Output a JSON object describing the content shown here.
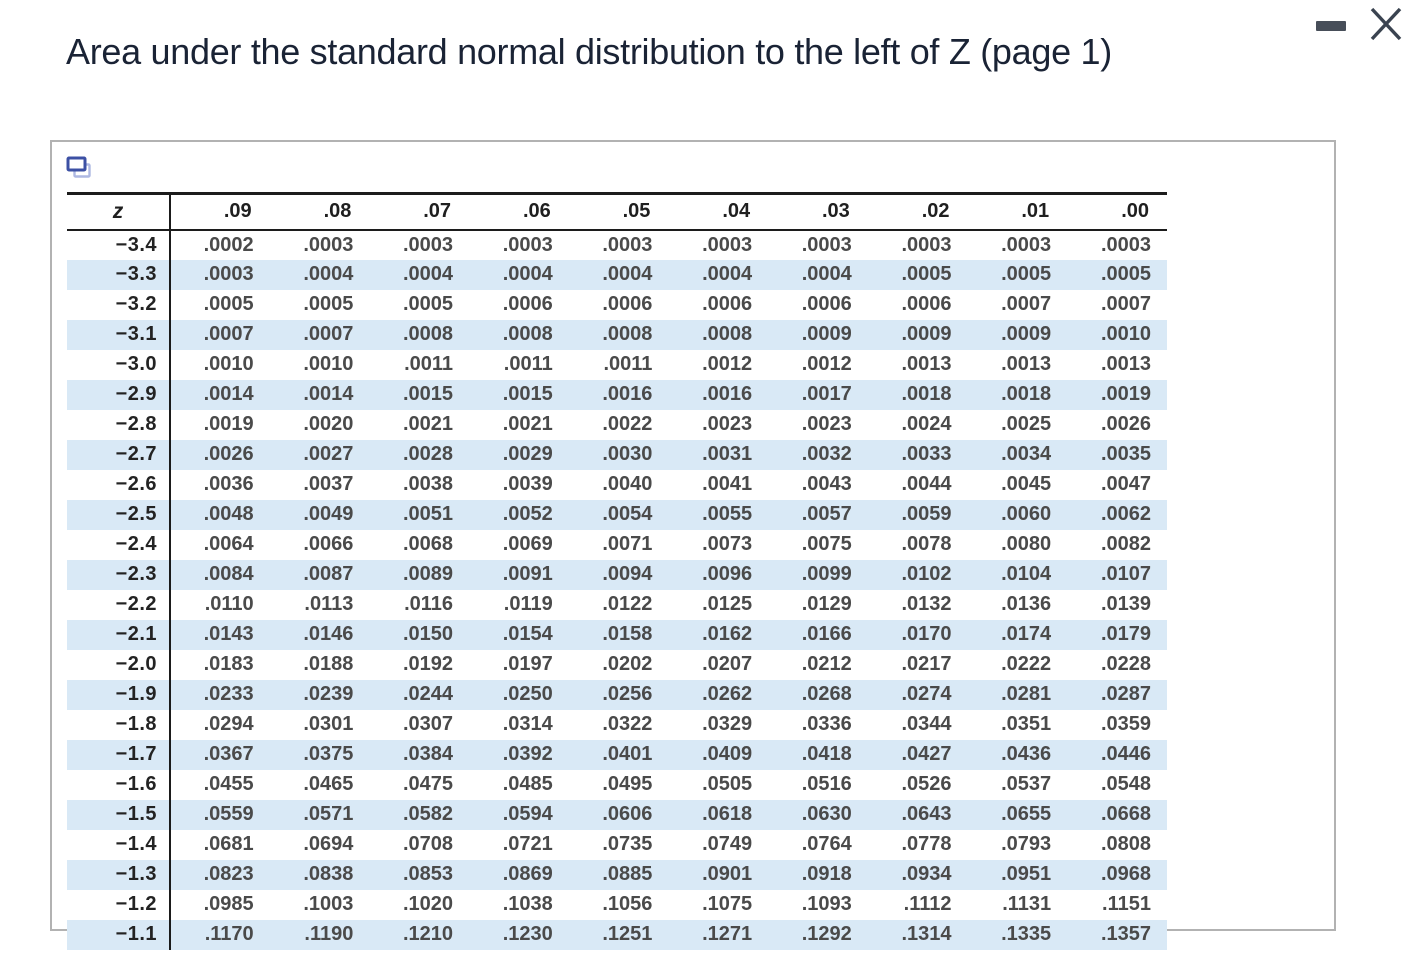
{
  "window": {
    "title": "Area under the standard normal distribution to the left of Z (page 1)",
    "minimize_icon": "minimize",
    "close_icon": "close"
  },
  "panel": {
    "copy_icon": "copy"
  },
  "colors": {
    "title_text": "#1a2335",
    "row_highlight": "#d9e9f6",
    "table_rule": "#1c1c1c",
    "panel_border": "#b2b2b2",
    "icon_slate": "#474e59",
    "copy_icon_front": "#3c50a4",
    "copy_icon_back": "#aeb8e2"
  },
  "table": {
    "columns": [
      "z",
      ".09",
      ".08",
      ".07",
      ".06",
      ".05",
      ".04",
      ".03",
      ".02",
      ".01",
      ".00"
    ],
    "rows": [
      {
        "z": "−3.4",
        "values": [
          ".0002",
          ".0003",
          ".0003",
          ".0003",
          ".0003",
          ".0003",
          ".0003",
          ".0003",
          ".0003",
          ".0003"
        ]
      },
      {
        "z": "−3.3",
        "values": [
          ".0003",
          ".0004",
          ".0004",
          ".0004",
          ".0004",
          ".0004",
          ".0004",
          ".0005",
          ".0005",
          ".0005"
        ]
      },
      {
        "z": "−3.2",
        "values": [
          ".0005",
          ".0005",
          ".0005",
          ".0006",
          ".0006",
          ".0006",
          ".0006",
          ".0006",
          ".0007",
          ".0007"
        ]
      },
      {
        "z": "−3.1",
        "values": [
          ".0007",
          ".0007",
          ".0008",
          ".0008",
          ".0008",
          ".0008",
          ".0009",
          ".0009",
          ".0009",
          ".0010"
        ]
      },
      {
        "z": "−3.0",
        "values": [
          ".0010",
          ".0010",
          ".0011",
          ".0011",
          ".0011",
          ".0012",
          ".0012",
          ".0013",
          ".0013",
          ".0013"
        ]
      },
      {
        "z": "−2.9",
        "values": [
          ".0014",
          ".0014",
          ".0015",
          ".0015",
          ".0016",
          ".0016",
          ".0017",
          ".0018",
          ".0018",
          ".0019"
        ]
      },
      {
        "z": "−2.8",
        "values": [
          ".0019",
          ".0020",
          ".0021",
          ".0021",
          ".0022",
          ".0023",
          ".0023",
          ".0024",
          ".0025",
          ".0026"
        ]
      },
      {
        "z": "−2.7",
        "values": [
          ".0026",
          ".0027",
          ".0028",
          ".0029",
          ".0030",
          ".0031",
          ".0032",
          ".0033",
          ".0034",
          ".0035"
        ]
      },
      {
        "z": "−2.6",
        "values": [
          ".0036",
          ".0037",
          ".0038",
          ".0039",
          ".0040",
          ".0041",
          ".0043",
          ".0044",
          ".0045",
          ".0047"
        ]
      },
      {
        "z": "−2.5",
        "values": [
          ".0048",
          ".0049",
          ".0051",
          ".0052",
          ".0054",
          ".0055",
          ".0057",
          ".0059",
          ".0060",
          ".0062"
        ]
      },
      {
        "z": "−2.4",
        "values": [
          ".0064",
          ".0066",
          ".0068",
          ".0069",
          ".0071",
          ".0073",
          ".0075",
          ".0078",
          ".0080",
          ".0082"
        ]
      },
      {
        "z": "−2.3",
        "values": [
          ".0084",
          ".0087",
          ".0089",
          ".0091",
          ".0094",
          ".0096",
          ".0099",
          ".0102",
          ".0104",
          ".0107"
        ]
      },
      {
        "z": "−2.2",
        "values": [
          ".0110",
          ".0113",
          ".0116",
          ".0119",
          ".0122",
          ".0125",
          ".0129",
          ".0132",
          ".0136",
          ".0139"
        ]
      },
      {
        "z": "−2.1",
        "values": [
          ".0143",
          ".0146",
          ".0150",
          ".0154",
          ".0158",
          ".0162",
          ".0166",
          ".0170",
          ".0174",
          ".0179"
        ]
      },
      {
        "z": "−2.0",
        "values": [
          ".0183",
          ".0188",
          ".0192",
          ".0197",
          ".0202",
          ".0207",
          ".0212",
          ".0217",
          ".0222",
          ".0228"
        ]
      },
      {
        "z": "−1.9",
        "values": [
          ".0233",
          ".0239",
          ".0244",
          ".0250",
          ".0256",
          ".0262",
          ".0268",
          ".0274",
          ".0281",
          ".0287"
        ]
      },
      {
        "z": "−1.8",
        "values": [
          ".0294",
          ".0301",
          ".0307",
          ".0314",
          ".0322",
          ".0329",
          ".0336",
          ".0344",
          ".0351",
          ".0359"
        ]
      },
      {
        "z": "−1.7",
        "values": [
          ".0367",
          ".0375",
          ".0384",
          ".0392",
          ".0401",
          ".0409",
          ".0418",
          ".0427",
          ".0436",
          ".0446"
        ]
      },
      {
        "z": "−1.6",
        "values": [
          ".0455",
          ".0465",
          ".0475",
          ".0485",
          ".0495",
          ".0505",
          ".0516",
          ".0526",
          ".0537",
          ".0548"
        ]
      },
      {
        "z": "−1.5",
        "values": [
          ".0559",
          ".0571",
          ".0582",
          ".0594",
          ".0606",
          ".0618",
          ".0630",
          ".0643",
          ".0655",
          ".0668"
        ]
      },
      {
        "z": "−1.4",
        "values": [
          ".0681",
          ".0694",
          ".0708",
          ".0721",
          ".0735",
          ".0749",
          ".0764",
          ".0778",
          ".0793",
          ".0808"
        ]
      },
      {
        "z": "−1.3",
        "values": [
          ".0823",
          ".0838",
          ".0853",
          ".0869",
          ".0885",
          ".0901",
          ".0918",
          ".0934",
          ".0951",
          ".0968"
        ]
      },
      {
        "z": "−1.2",
        "values": [
          ".0985",
          ".1003",
          ".1020",
          ".1038",
          ".1056",
          ".1075",
          ".1093",
          ".1112",
          ".1131",
          ".1151"
        ]
      },
      {
        "z": "−1.1",
        "values": [
          ".1170",
          ".1190",
          ".1210",
          ".1230",
          ".1251",
          ".1271",
          ".1292",
          ".1314",
          ".1335",
          ".1357"
        ]
      }
    ]
  }
}
